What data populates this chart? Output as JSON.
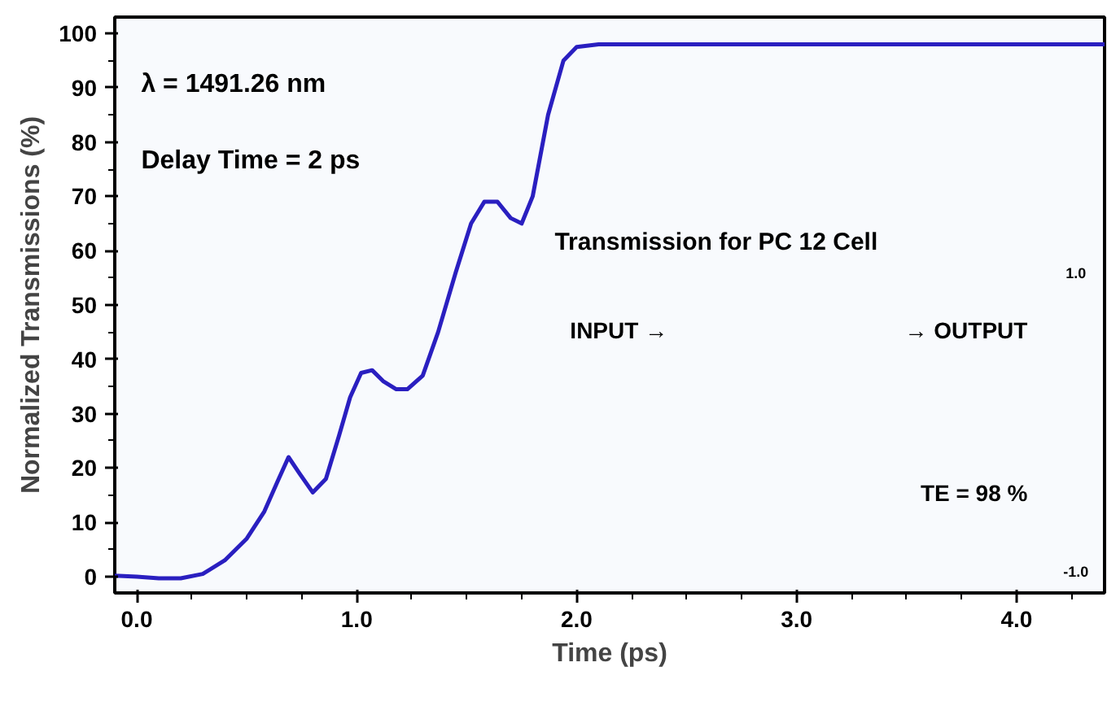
{
  "chart_data": {
    "type": "line",
    "xlabel": "Time (ps)",
    "ylabel": "Normalized Transmissions (%)",
    "x": [
      -0.1,
      0.0,
      0.1,
      0.2,
      0.3,
      0.4,
      0.5,
      0.58,
      0.64,
      0.69,
      0.74,
      0.8,
      0.86,
      0.92,
      0.97,
      1.02,
      1.07,
      1.12,
      1.18,
      1.23,
      1.3,
      1.37,
      1.45,
      1.52,
      1.58,
      1.64,
      1.7,
      1.75,
      1.8,
      1.87,
      1.94,
      2.0,
      2.1,
      2.3,
      3.0,
      4.4
    ],
    "series": [
      {
        "color": "#2a1fc0",
        "values": [
          0.2,
          0,
          -0.3,
          -0.3,
          0.5,
          3,
          7,
          12,
          17.5,
          22,
          19,
          15.5,
          18,
          26,
          33,
          37.5,
          38,
          36,
          34.5,
          34.5,
          37,
          45,
          56,
          65,
          69,
          69,
          66,
          65,
          70,
          85,
          95,
          97.5,
          98,
          98,
          98,
          98
        ]
      }
    ],
    "xlim": [
      -0.1,
      4.4
    ],
    "ylim": [
      -3,
      103
    ],
    "xticks": [
      {
        "value": 0,
        "label": "0.0"
      },
      {
        "value": 1,
        "label": "1.0"
      },
      {
        "value": 2,
        "label": "2.0"
      },
      {
        "value": 3,
        "label": "3.0"
      },
      {
        "value": 4,
        "label": "4.0"
      }
    ],
    "yticks": [
      0,
      10,
      20,
      30,
      40,
      50,
      60,
      70,
      80,
      90,
      100
    ],
    "grid": false,
    "marker": "none",
    "line_style": "solid",
    "annotations": [
      "λ = 1491.26 nm",
      "Delay Time = 2 ps",
      "Transmission for PC 12 Cell",
      "INPUT →",
      "→ OUTPUT",
      "TE = 98 %",
      "1.0",
      "-1.0"
    ]
  }
}
